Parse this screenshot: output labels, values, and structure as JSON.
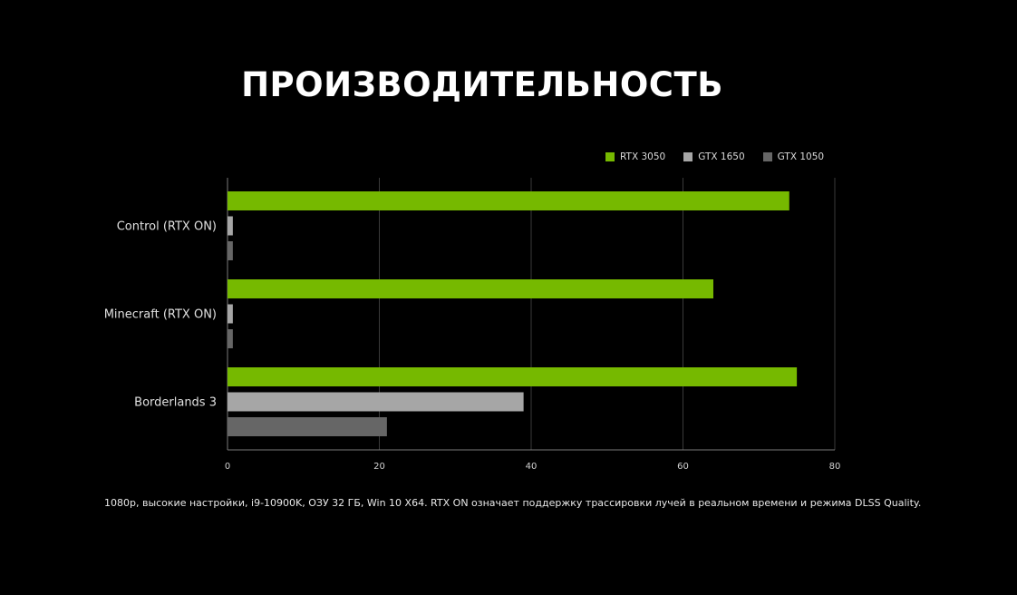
{
  "header": {
    "title": "ПРОИЗВОДИТЕЛЬНОСТЬ"
  },
  "legend": {
    "items": [
      {
        "label": "RTX 3050",
        "color": "#76b900"
      },
      {
        "label": "GTX 1650",
        "color": "#a6a6a6"
      },
      {
        "label": "GTX 1050",
        "color": "#666666"
      }
    ]
  },
  "chart_data": {
    "type": "bar",
    "orientation": "horizontal",
    "title": "ПРОИЗВОДИТЕЛЬНОСТЬ",
    "categories": [
      "Control (RTX ON)",
      "Minecraft (RTX ON)",
      "Borderlands 3"
    ],
    "series": [
      {
        "name": "RTX 3050",
        "color": "#76b900",
        "values": [
          74,
          64,
          75
        ]
      },
      {
        "name": "GTX 1650",
        "color": "#a6a6a6",
        "values": [
          0.7,
          0.7,
          39
        ]
      },
      {
        "name": "GTX 1050",
        "color": "#666666",
        "values": [
          0.7,
          0.7,
          21
        ]
      }
    ],
    "xlim": [
      0,
      80
    ],
    "xticks": [
      "0",
      "20",
      "40",
      "60",
      "80"
    ],
    "xlabel": "",
    "ylabel": "",
    "grid": true,
    "legend_position": "top-right"
  },
  "footnote": "1080p, высокие настройки, i9-10900K, ОЗУ 32 ГБ, Win 10 X64. RTX ON означает поддержку трассировки лучей в реальном времени и режима DLSS Quality."
}
